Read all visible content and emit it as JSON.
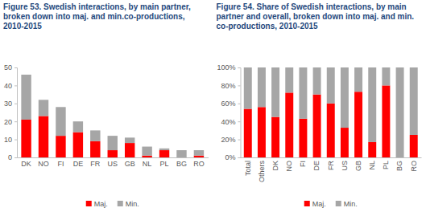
{
  "chart_data": [
    {
      "type": "bar",
      "stacked": true,
      "title": "Figure 53.  Swedish interactions, by main partner, broken down into maj. and min.co-productions, 2010-2015",
      "categories": [
        "DK",
        "NO",
        "FI",
        "DE",
        "FR",
        "US",
        "GB",
        "NL",
        "PL",
        "BG",
        "RO"
      ],
      "series": [
        {
          "name": "Maj.",
          "color": "#ff0000",
          "values": [
            21,
            23,
            12,
            14,
            9,
            4,
            8,
            1,
            4,
            0,
            1
          ]
        },
        {
          "name": "Min.",
          "color": "#a6a6a6",
          "values": [
            25,
            9,
            16,
            6,
            6,
            8,
            3,
            5,
            1,
            4,
            3
          ]
        }
      ],
      "ylim": [
        0,
        50
      ],
      "yticks": [
        0,
        10,
        20,
        30,
        40,
        50
      ],
      "grid": false,
      "legend": "bottom"
    },
    {
      "type": "bar",
      "stacked": true,
      "title": "Figure 54.  Share of Swedish interactions, by main partner and overall, broken down into maj. and min. co-productions, 2010-2015",
      "categories": [
        "Total",
        "Others",
        "DK",
        "NO",
        "FI",
        "DE",
        "FR",
        "US",
        "GB",
        "NL",
        "PL",
        "BG",
        "RO"
      ],
      "series": [
        {
          "name": "Maj.",
          "color": "#ff0000",
          "values": [
            54,
            56,
            45,
            72,
            43,
            70,
            60,
            33,
            73,
            17,
            80,
            0,
            25
          ]
        },
        {
          "name": "Min.",
          "color": "#a6a6a6",
          "values": [
            46,
            44,
            55,
            28,
            57,
            30,
            40,
            67,
            27,
            83,
            20,
            100,
            75
          ]
        }
      ],
      "ylim": [
        0,
        100
      ],
      "yticks": [
        {
          "value": 0,
          "label": "0%"
        },
        {
          "value": 20,
          "label": "20%"
        },
        {
          "value": 40,
          "label": "40%"
        },
        {
          "value": 60,
          "label": "60%"
        },
        {
          "value": 80,
          "label": "80%"
        },
        {
          "value": 100,
          "label": "100%"
        }
      ],
      "grid": false,
      "legend": "bottom"
    }
  ]
}
